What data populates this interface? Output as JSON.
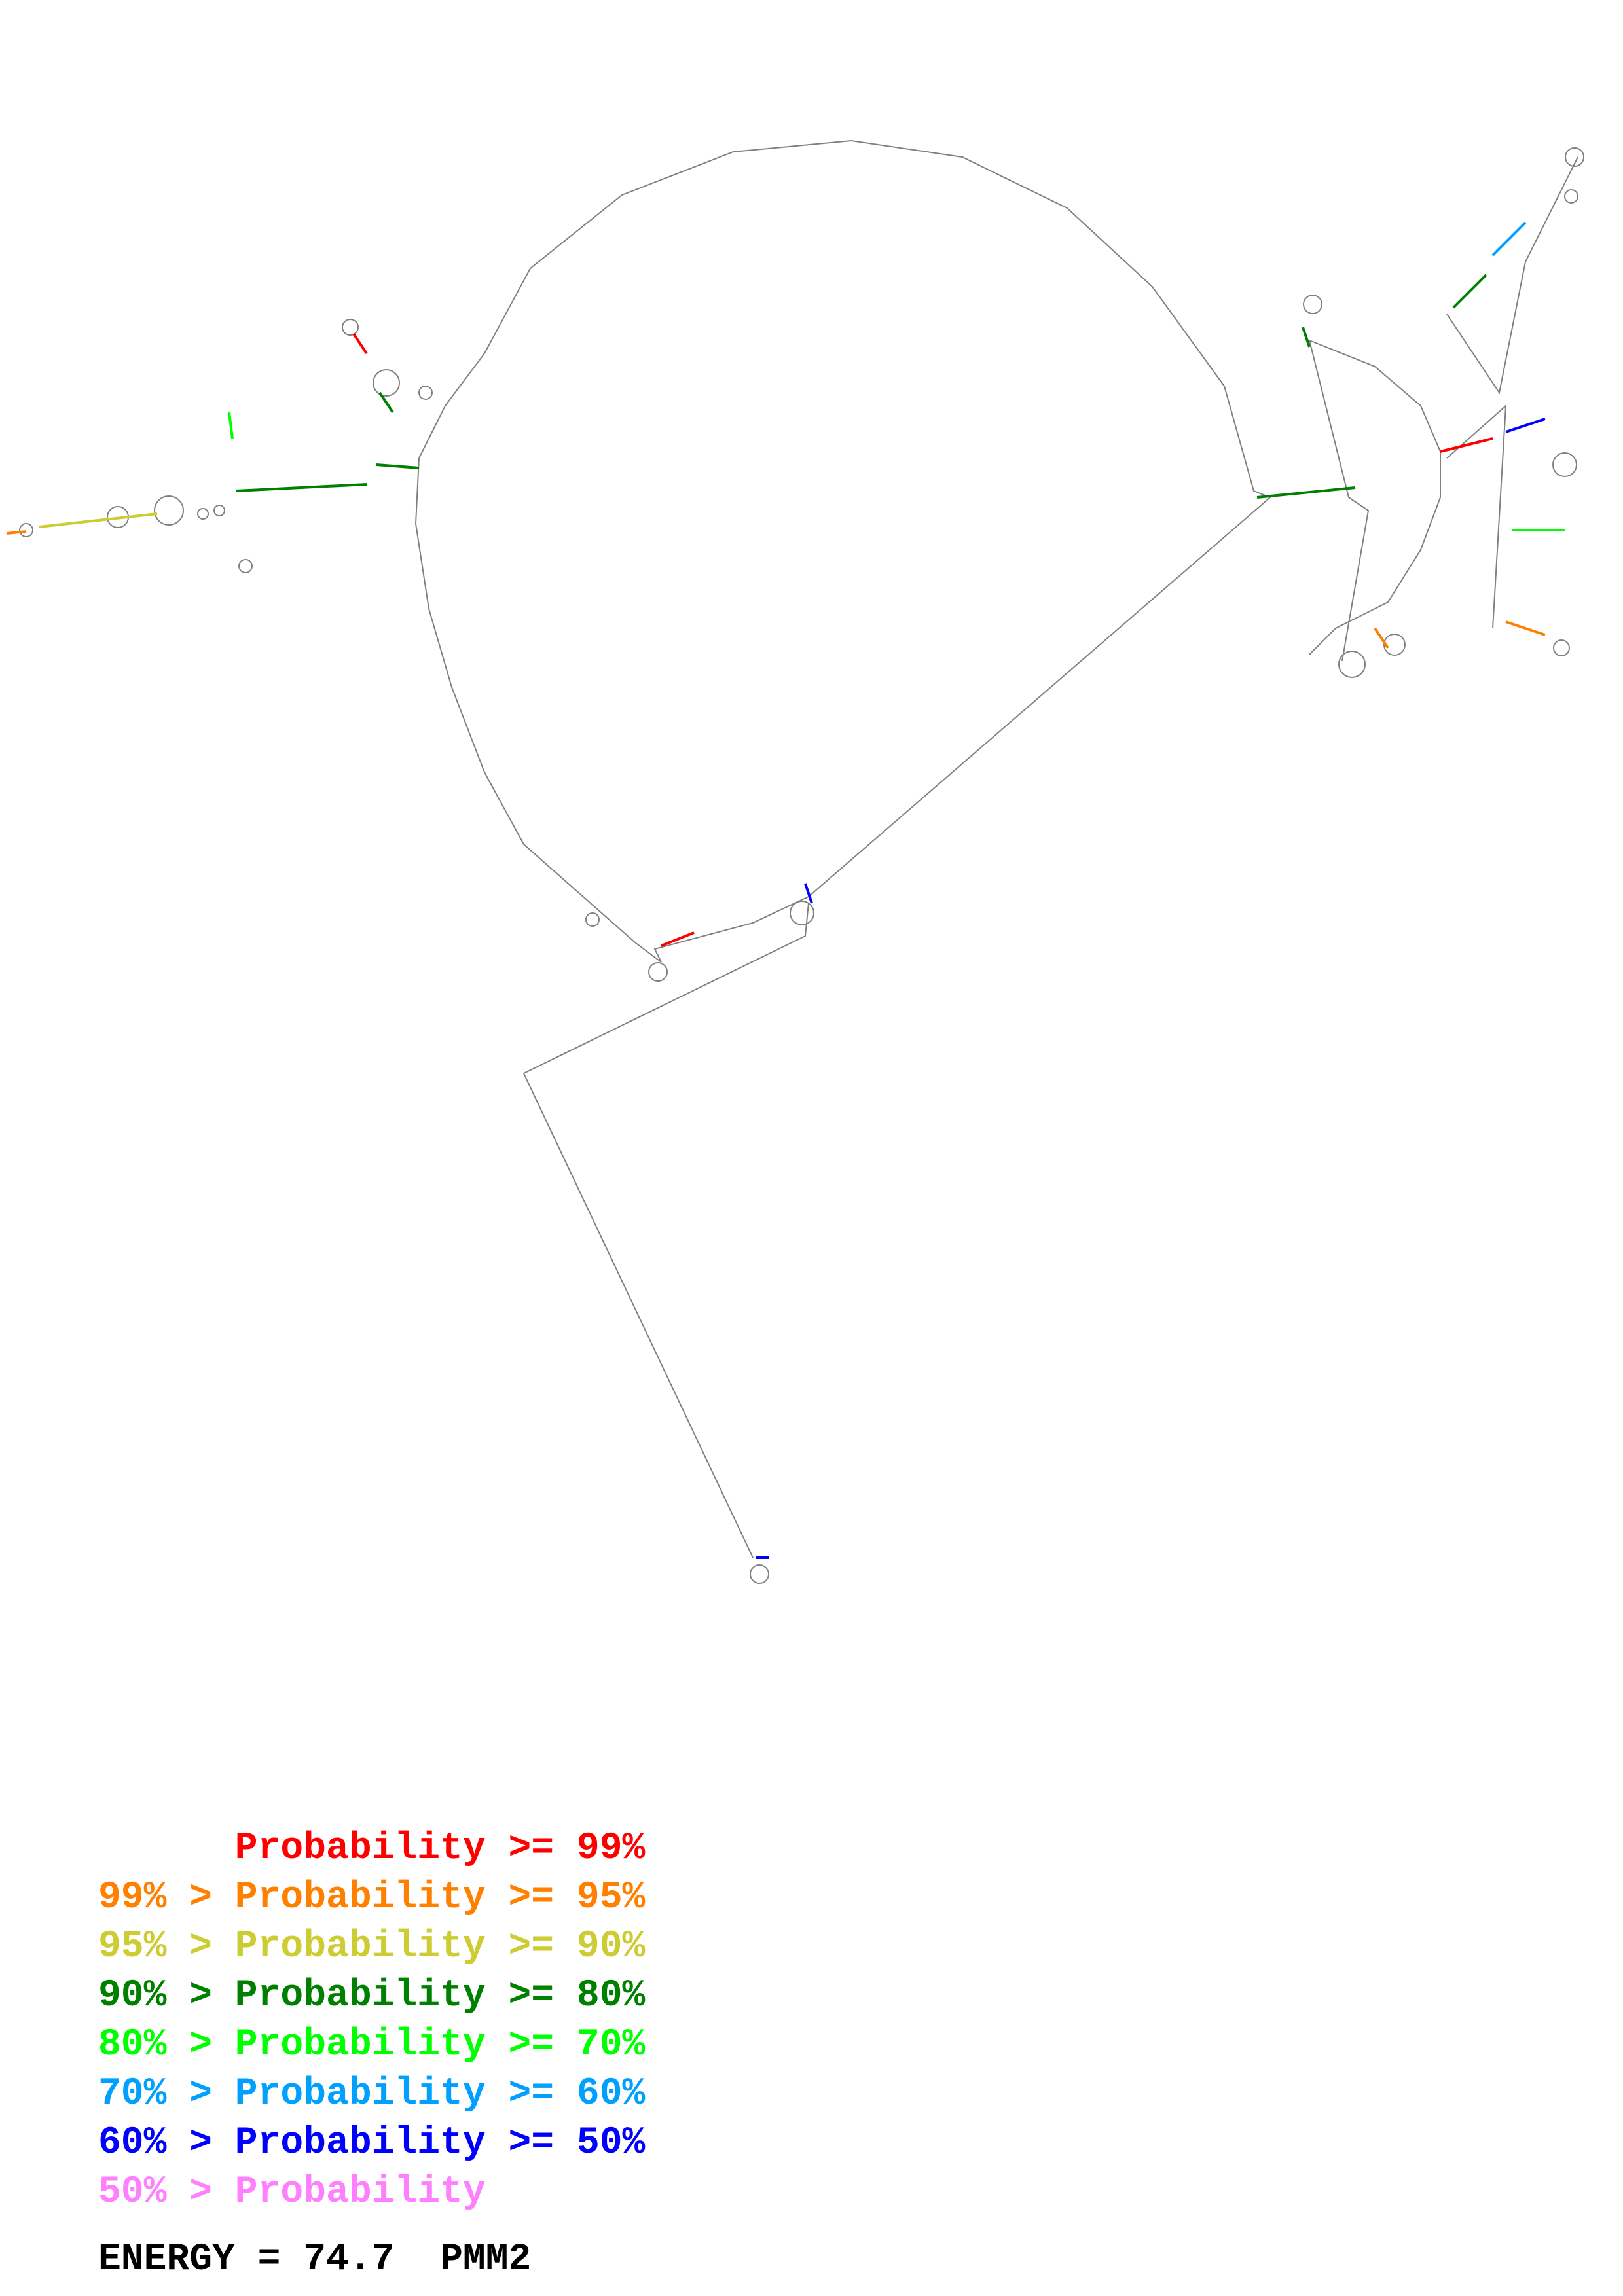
{
  "legend": {
    "rows": [
      {
        "prefix": "",
        "label": "Probability",
        "suffix": ">= 99%",
        "color": "#ff0000"
      },
      {
        "prefix": "99% >",
        "label": "Probability",
        "suffix": ">= 95%",
        "color": "#ff8000"
      },
      {
        "prefix": "95% >",
        "label": "Probability",
        "suffix": ">= 90%",
        "color": "#cccc33"
      },
      {
        "prefix": "90% >",
        "label": "Probability",
        "suffix": ">= 80%",
        "color": "#008000"
      },
      {
        "prefix": "80% >",
        "label": "Probability",
        "suffix": ">= 70%",
        "color": "#00ff00"
      },
      {
        "prefix": "70% >",
        "label": "Probability",
        "suffix": ">= 60%",
        "color": "#00a0ff"
      },
      {
        "prefix": "60% >",
        "label": "Probability",
        "suffix": ">= 50%",
        "color": "#0000ff"
      },
      {
        "prefix": "50% >",
        "label": "Probability",
        "suffix": "",
        "color": "#ff80ff"
      }
    ]
  },
  "energy": {
    "label": "ENERGY = 74.7",
    "gene": "PMM2"
  },
  "colors": {
    "backbone": "#808080"
  }
}
